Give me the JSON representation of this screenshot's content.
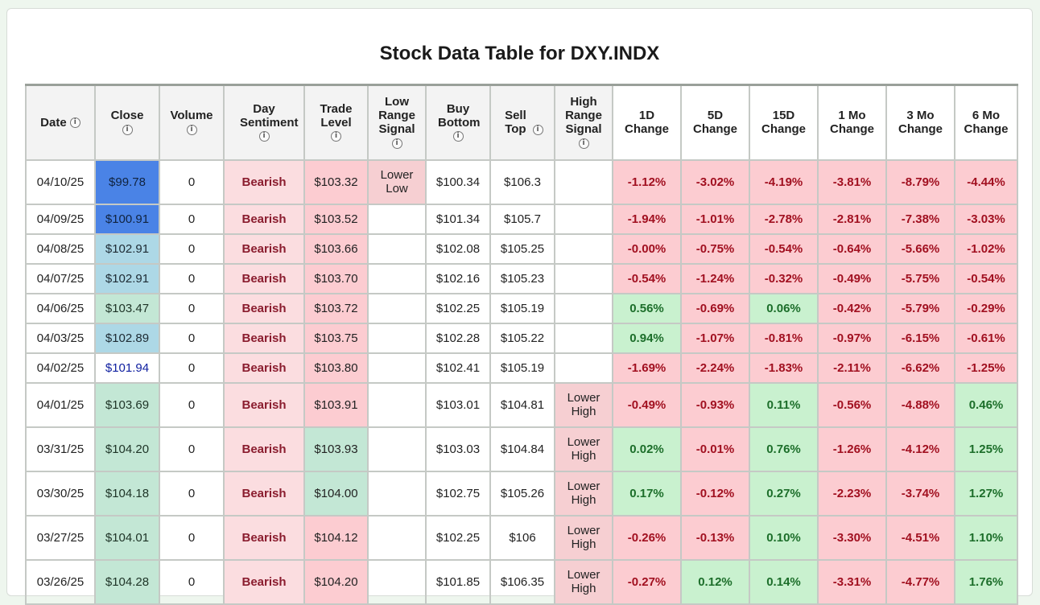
{
  "title": "Stock Data Table for DXY.INDX",
  "columns": [
    "Date",
    "Close",
    "Volume",
    "Day Sentiment",
    "Trade Level",
    "Low Range Signal",
    "Buy Bottom",
    "Sell Top",
    "High Range Signal",
    "1D Change",
    "5D Change",
    "15D Change",
    "1 Mo Change",
    "3 Mo Change",
    "6 Mo Change"
  ],
  "column_headers": {
    "date": "Date",
    "close": "Close",
    "volume": "Volume",
    "day_sentiment": "Day Sentiment",
    "trade_level": "Trade Level",
    "low_range_signal": "Low Range Signal",
    "buy_bottom": "Buy Bottom",
    "sell_top": "Sell Top",
    "high_range_signal": "High Range Signal",
    "change_1d": "1D Change",
    "change_5d": "5D Change",
    "change_15d": "15D Change",
    "change_1mo": "1 Mo Change",
    "change_3mo": "3 Mo Change",
    "change_6mo": "6 Mo Change"
  },
  "info_icon": "info-icon",
  "rows": [
    {
      "date": "04/10/25",
      "close": "$99.78",
      "close_style": "blue",
      "volume": "0",
      "sentiment": "Bearish",
      "trade": "$103.32",
      "trade_style": "red",
      "low_signal": "Lower Low",
      "buy": "$100.34",
      "sell": "$106.3",
      "high_signal": "",
      "c1d": "-1.12%",
      "c5d": "-3.02%",
      "c15d": "-4.19%",
      "c1m": "-3.81%",
      "c3m": "-8.79%",
      "c6m": "-4.44%"
    },
    {
      "date": "04/09/25",
      "close": "$100.91",
      "close_style": "blue",
      "volume": "0",
      "sentiment": "Bearish",
      "trade": "$103.52",
      "trade_style": "red",
      "low_signal": "",
      "buy": "$101.34",
      "sell": "$105.7",
      "high_signal": "",
      "c1d": "-1.94%",
      "c5d": "-1.01%",
      "c15d": "-2.78%",
      "c1m": "-2.81%",
      "c3m": "-7.38%",
      "c6m": "-3.03%"
    },
    {
      "date": "04/08/25",
      "close": "$102.91",
      "close_style": "light",
      "volume": "0",
      "sentiment": "Bearish",
      "trade": "$103.66",
      "trade_style": "red",
      "low_signal": "",
      "buy": "$102.08",
      "sell": "$105.25",
      "high_signal": "",
      "c1d": "-0.00%",
      "c5d": "-0.75%",
      "c15d": "-0.54%",
      "c1m": "-0.64%",
      "c3m": "-5.66%",
      "c6m": "-1.02%"
    },
    {
      "date": "04/07/25",
      "close": "$102.91",
      "close_style": "light",
      "volume": "0",
      "sentiment": "Bearish",
      "trade": "$103.70",
      "trade_style": "red",
      "low_signal": "",
      "buy": "$102.16",
      "sell": "$105.23",
      "high_signal": "",
      "c1d": "-0.54%",
      "c5d": "-1.24%",
      "c15d": "-0.32%",
      "c1m": "-0.49%",
      "c3m": "-5.75%",
      "c6m": "-0.54%"
    },
    {
      "date": "04/06/25",
      "close": "$103.47",
      "close_style": "green",
      "volume": "0",
      "sentiment": "Bearish",
      "trade": "$103.72",
      "trade_style": "red",
      "low_signal": "",
      "buy": "$102.25",
      "sell": "$105.19",
      "high_signal": "",
      "c1d": "0.56%",
      "c5d": "-0.69%",
      "c15d": "0.06%",
      "c1m": "-0.42%",
      "c3m": "-5.79%",
      "c6m": "-0.29%"
    },
    {
      "date": "04/03/25",
      "close": "$102.89",
      "close_style": "light",
      "volume": "0",
      "sentiment": "Bearish",
      "trade": "$103.75",
      "trade_style": "red",
      "low_signal": "",
      "buy": "$102.28",
      "sell": "$105.22",
      "high_signal": "",
      "c1d": "0.94%",
      "c5d": "-1.07%",
      "c15d": "-0.81%",
      "c1m": "-0.97%",
      "c3m": "-6.15%",
      "c6m": "-0.61%"
    },
    {
      "date": "04/02/25",
      "close": "$101.94",
      "close_style": "none",
      "volume": "0",
      "sentiment": "Bearish",
      "trade": "$103.80",
      "trade_style": "red",
      "low_signal": "",
      "buy": "$102.41",
      "sell": "$105.19",
      "high_signal": "",
      "c1d": "-1.69%",
      "c5d": "-2.24%",
      "c15d": "-1.83%",
      "c1m": "-2.11%",
      "c3m": "-6.62%",
      "c6m": "-1.25%"
    },
    {
      "date": "04/01/25",
      "close": "$103.69",
      "close_style": "green",
      "volume": "0",
      "sentiment": "Bearish",
      "trade": "$103.91",
      "trade_style": "red",
      "low_signal": "",
      "buy": "$103.01",
      "sell": "$104.81",
      "high_signal": "Lower High",
      "c1d": "-0.49%",
      "c5d": "-0.93%",
      "c15d": "0.11%",
      "c1m": "-0.56%",
      "c3m": "-4.88%",
      "c6m": "0.46%"
    },
    {
      "date": "03/31/25",
      "close": "$104.20",
      "close_style": "green",
      "volume": "0",
      "sentiment": "Bearish",
      "trade": "$103.93",
      "trade_style": "green",
      "low_signal": "",
      "buy": "$103.03",
      "sell": "$104.84",
      "high_signal": "Lower High",
      "c1d": "0.02%",
      "c5d": "-0.01%",
      "c15d": "0.76%",
      "c1m": "-1.26%",
      "c3m": "-4.12%",
      "c6m": "1.25%"
    },
    {
      "date": "03/30/25",
      "close": "$104.18",
      "close_style": "green",
      "volume": "0",
      "sentiment": "Bearish",
      "trade": "$104.00",
      "trade_style": "green",
      "low_signal": "",
      "buy": "$102.75",
      "sell": "$105.26",
      "high_signal": "Lower High",
      "c1d": "0.17%",
      "c5d": "-0.12%",
      "c15d": "0.27%",
      "c1m": "-2.23%",
      "c3m": "-3.74%",
      "c6m": "1.27%"
    },
    {
      "date": "03/27/25",
      "close": "$104.01",
      "close_style": "green",
      "volume": "0",
      "sentiment": "Bearish",
      "trade": "$104.12",
      "trade_style": "red",
      "low_signal": "",
      "buy": "$102.25",
      "sell": "$106",
      "high_signal": "Lower High",
      "c1d": "-0.26%",
      "c5d": "-0.13%",
      "c15d": "0.10%",
      "c1m": "-3.30%",
      "c3m": "-4.51%",
      "c6m": "1.10%"
    },
    {
      "date": "03/26/25",
      "close": "$104.28",
      "close_style": "green",
      "volume": "0",
      "sentiment": "Bearish",
      "trade": "$104.20",
      "trade_style": "red",
      "low_signal": "",
      "buy": "$101.85",
      "sell": "$106.35",
      "high_signal": "Lower High",
      "c1d": "-0.27%",
      "c5d": "0.12%",
      "c15d": "0.14%",
      "c1m": "-3.31%",
      "c3m": "-4.77%",
      "c6m": "1.76%"
    }
  ]
}
